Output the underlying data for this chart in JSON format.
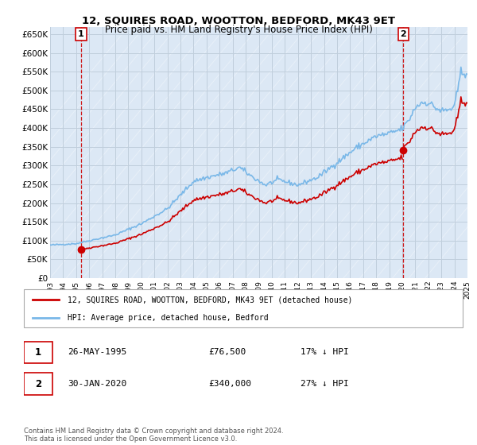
{
  "title": "12, SQUIRES ROAD, WOOTTON, BEDFORD, MK43 9ET",
  "subtitle": "Price paid vs. HM Land Registry's House Price Index (HPI)",
  "ylim": [
    0,
    670000
  ],
  "yticks": [
    0,
    50000,
    100000,
    150000,
    200000,
    250000,
    300000,
    350000,
    400000,
    450000,
    500000,
    550000,
    600000,
    650000
  ],
  "ytick_labels": [
    "£0",
    "£50K",
    "£100K",
    "£150K",
    "£200K",
    "£250K",
    "£300K",
    "£350K",
    "£400K",
    "£450K",
    "£500K",
    "£550K",
    "£600K",
    "£650K"
  ],
  "hpi_color": "#7ab8e8",
  "price_color": "#cc0000",
  "bg_color": "#dce8f5",
  "hatch_color": "#c8d8eb",
  "grid_color": "#c0cedc",
  "sale1_x": 1995.38,
  "sale1_price": 76500,
  "sale2_x": 2020.08,
  "sale2_price": 340000,
  "legend_line1": "12, SQUIRES ROAD, WOOTTON, BEDFORD, MK43 9ET (detached house)",
  "legend_line2": "HPI: Average price, detached house, Bedford",
  "note1_num": "1",
  "note1_date": "26-MAY-1995",
  "note1_price": "£76,500",
  "note1_hpi": "17% ↓ HPI",
  "note2_num": "2",
  "note2_date": "30-JAN-2020",
  "note2_price": "£340,000",
  "note2_hpi": "27% ↓ HPI",
  "copyright": "Contains HM Land Registry data © Crown copyright and database right 2024.\nThis data is licensed under the Open Government Licence v3.0."
}
